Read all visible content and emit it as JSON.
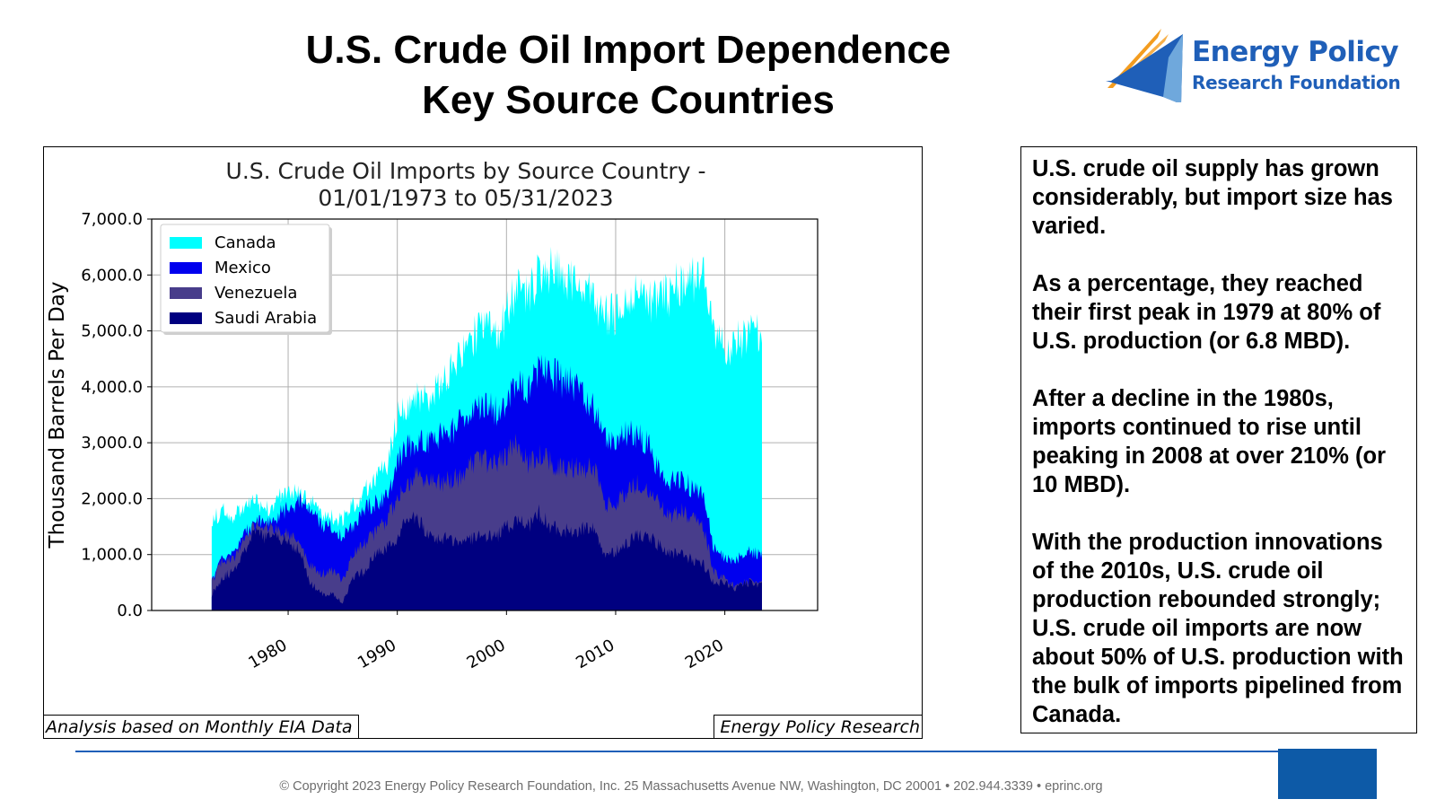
{
  "slide": {
    "title_line1": "U.S. Crude Oil Import Dependence",
    "title_line2": "Key Source Countries"
  },
  "logo": {
    "line1": "Energy Policy",
    "line2": "Research Foundation",
    "colors": {
      "orange": "#f39c1f",
      "blue": "#1f5fb8",
      "light_blue": "#6fa8dc"
    }
  },
  "chart_data": {
    "type": "area",
    "stacked": true,
    "title_line1": "U.S. Crude Oil Imports by Source Country -",
    "title_line2": "01/01/1973 to 05/31/2023",
    "xlabel": "",
    "ylabel": "Thousand Barrels Per Day",
    "xlim": [
      1967.5,
      2028.5
    ],
    "ylim": [
      0,
      7000
    ],
    "x_ticks": [
      1980,
      1990,
      2000,
      2010,
      2020
    ],
    "y_ticks": [
      "0.0",
      "1,000.0",
      "2,000.0",
      "3,000.0",
      "4,000.0",
      "5,000.0",
      "6,000.0",
      "7,000.0"
    ],
    "grid": true,
    "legend_position": "top-left",
    "legend_order": [
      "Canada",
      "Mexico",
      "Venezuela",
      "Saudi Arabia"
    ],
    "x": [
      1973,
      1974,
      1975,
      1976,
      1977,
      1978,
      1979,
      1980,
      1981,
      1982,
      1983,
      1984,
      1985,
      1986,
      1987,
      1988,
      1989,
      1990,
      1991,
      1992,
      1993,
      1994,
      1995,
      1996,
      1997,
      1998,
      1999,
      2000,
      2001,
      2002,
      2003,
      2004,
      2005,
      2006,
      2007,
      2008,
      2009,
      2010,
      2011,
      2012,
      2013,
      2014,
      2015,
      2016,
      2017,
      2018,
      2019,
      2020,
      2021,
      2022,
      2023.4
    ],
    "series": [
      {
        "name": "Saudi Arabia",
        "color": "#000080",
        "values": [
          300,
          600,
          700,
          1100,
          1400,
          1300,
          1350,
          1200,
          1100,
          500,
          300,
          300,
          150,
          600,
          700,
          1000,
          1100,
          1300,
          1650,
          1600,
          1300,
          1300,
          1250,
          1250,
          1300,
          1350,
          1300,
          1500,
          1600,
          1500,
          1750,
          1500,
          1450,
          1400,
          1450,
          1500,
          1000,
          1050,
          1200,
          1350,
          1350,
          1150,
          1000,
          1050,
          900,
          850,
          500,
          500,
          400,
          500,
          450
        ]
      },
      {
        "name": "Venezuela",
        "color": "#483d8b",
        "values": [
          500,
          900,
          900,
          1300,
          1550,
          1450,
          1450,
          1350,
          1200,
          800,
          650,
          700,
          550,
          1000,
          1200,
          1400,
          1600,
          2050,
          2300,
          2400,
          2300,
          2300,
          2300,
          2450,
          2600,
          2700,
          2600,
          2800,
          2950,
          2650,
          2800,
          2650,
          2550,
          2550,
          2550,
          2550,
          1900,
          1950,
          2100,
          2300,
          2150,
          1900,
          1700,
          1800,
          1650,
          1500,
          700,
          550,
          400,
          500,
          450
        ]
      },
      {
        "name": "Mexico",
        "color": "#0000ee",
        "values": [
          500,
          950,
          1000,
          1350,
          1600,
          1500,
          1700,
          1850,
          1950,
          1800,
          1550,
          1500,
          1300,
          1550,
          1800,
          1950,
          2000,
          2650,
          2950,
          3050,
          3000,
          3150,
          3200,
          3400,
          3550,
          3700,
          3550,
          3750,
          4150,
          3900,
          4300,
          4300,
          4100,
          4050,
          3850,
          3600,
          3050,
          3000,
          3150,
          3150,
          2950,
          2500,
          2300,
          2350,
          2200,
          2100,
          1100,
          950,
          900,
          1050,
          1000
        ]
      },
      {
        "name": "Canada",
        "color": "#00ffff",
        "values": [
          1600,
          1800,
          1700,
          1800,
          1950,
          1800,
          2000,
          2150,
          2100,
          1950,
          1700,
          1700,
          1600,
          1900,
          2150,
          2400,
          2550,
          3500,
          3700,
          3800,
          3800,
          4100,
          4400,
          4700,
          4900,
          5100,
          4900,
          5300,
          5800,
          5550,
          6100,
          6100,
          6000,
          5950,
          5850,
          5600,
          5250,
          5300,
          5500,
          5700,
          5500,
          5650,
          5650,
          5900,
          5900,
          5950,
          5000,
          4600,
          4800,
          4900,
          5000
        ]
      }
    ]
  },
  "footnotes": {
    "left": "Analysis based on Monthly EIA Data",
    "right": "Energy Policy Research"
  },
  "sidebar": {
    "paragraphs": [
      "U.S. crude oil supply has grown considerably, but import size has varied.",
      "As a percentage, they reached their first peak in 1979 at 80% of U.S. production (or 6.8 MBD).",
      "After a decline in the 1980s, imports continued to rise until peaking in 2008 at over 210% (or 10 MBD).",
      "With the production innovations of the 2010s, U.S. crude oil production rebounded strongly; U.S. crude oil imports are now about 50% of U.S. production with the bulk of imports pipelined from Canada."
    ]
  },
  "footer": {
    "copyright": "© Copyright 2023 Energy Policy Research Foundation, Inc. 25 Massachusetts Avenue NW, Washington, DC 20001 • 202.944.3339 • eprinc.org",
    "line_color": "#1f5fb8",
    "block_color": "#0d5aa7"
  }
}
